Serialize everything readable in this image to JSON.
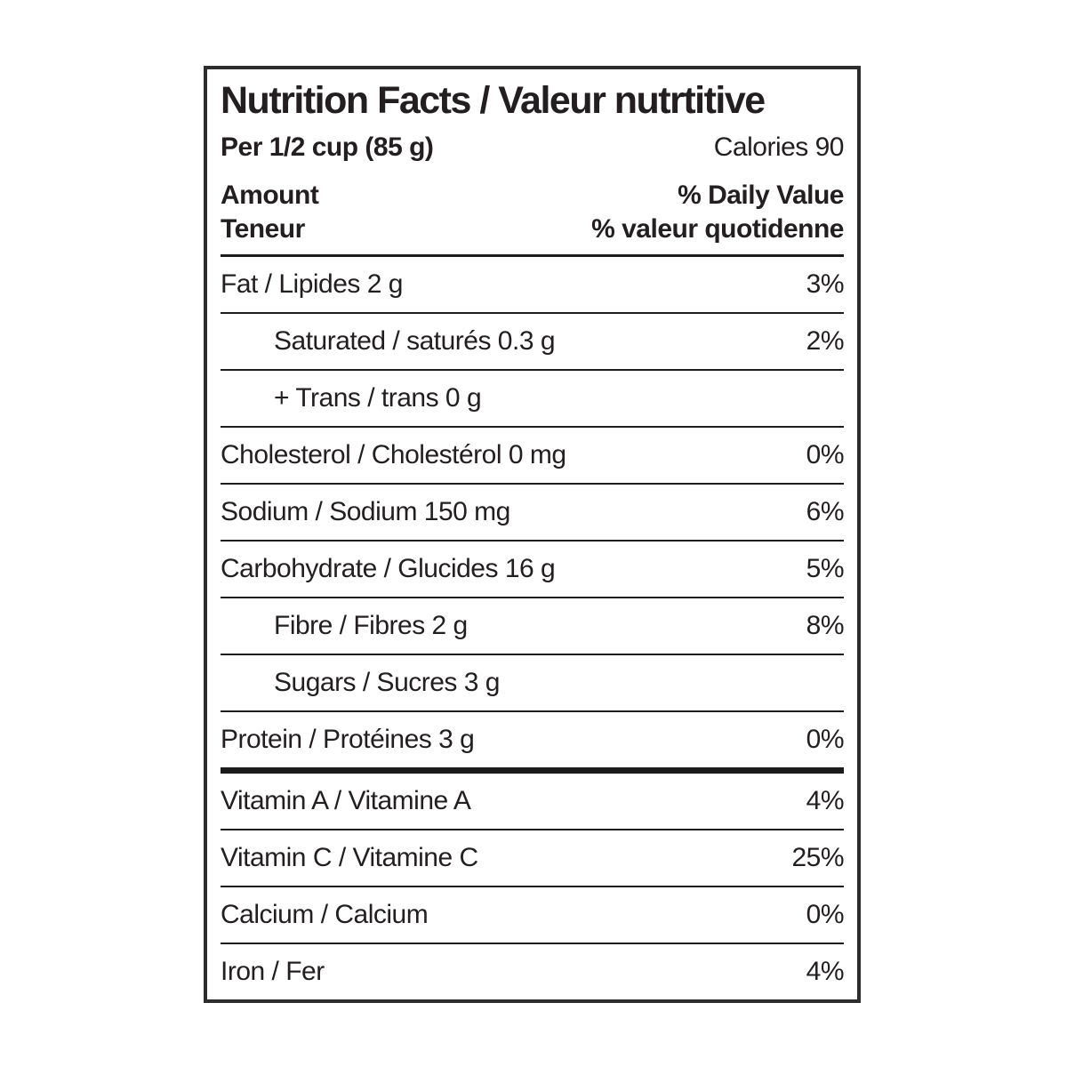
{
  "label": {
    "title": "Nutrition Facts / Valeur nutrtitive",
    "serving": "Per 1/2 cup (85 g)",
    "calories": "Calories 90",
    "amount_header": {
      "en": "Amount",
      "fr": "Teneur"
    },
    "daily_value_header": {
      "en": "% Daily Value",
      "fr": "% valeur quotidenne"
    },
    "rows": [
      {
        "label": "Fat / Lipides 2 g",
        "value": "3%",
        "indent": false,
        "thick_after": false
      },
      {
        "label": "Saturated / saturés 0.3 g",
        "value": "2%",
        "indent": true,
        "thick_after": false
      },
      {
        "label": "+ Trans / trans 0 g",
        "value": "",
        "indent": true,
        "thick_after": false
      },
      {
        "label": "Cholesterol / Cholestérol 0 mg",
        "value": "0%",
        "indent": false,
        "thick_after": false
      },
      {
        "label": "Sodium / Sodium 150 mg",
        "value": "6%",
        "indent": false,
        "thick_after": false
      },
      {
        "label": "Carbohydrate / Glucides 16 g",
        "value": "5%",
        "indent": false,
        "thick_after": false
      },
      {
        "label": "Fibre / Fibres 2 g",
        "value": "8%",
        "indent": true,
        "thick_after": false
      },
      {
        "label": "Sugars / Sucres 3 g",
        "value": "",
        "indent": true,
        "thick_after": false
      },
      {
        "label": "Protein / Protéines 3 g",
        "value": "0%",
        "indent": false,
        "thick_after": true
      },
      {
        "label": "Vitamin A / Vitamine A",
        "value": "4%",
        "indent": false,
        "thick_after": false
      },
      {
        "label": "Vitamin C / Vitamine C",
        "value": "25%",
        "indent": false,
        "thick_after": false
      },
      {
        "label": "Calcium / Calcium",
        "value": "0%",
        "indent": false,
        "thick_after": false
      },
      {
        "label": "Iron / Fer",
        "value": "4%",
        "indent": false,
        "thick_after": false
      }
    ]
  },
  "colors": {
    "text": "#231f20",
    "separator_line": "#1c1c1c",
    "border": "#2d2d2d",
    "background": "#ffffff"
  }
}
